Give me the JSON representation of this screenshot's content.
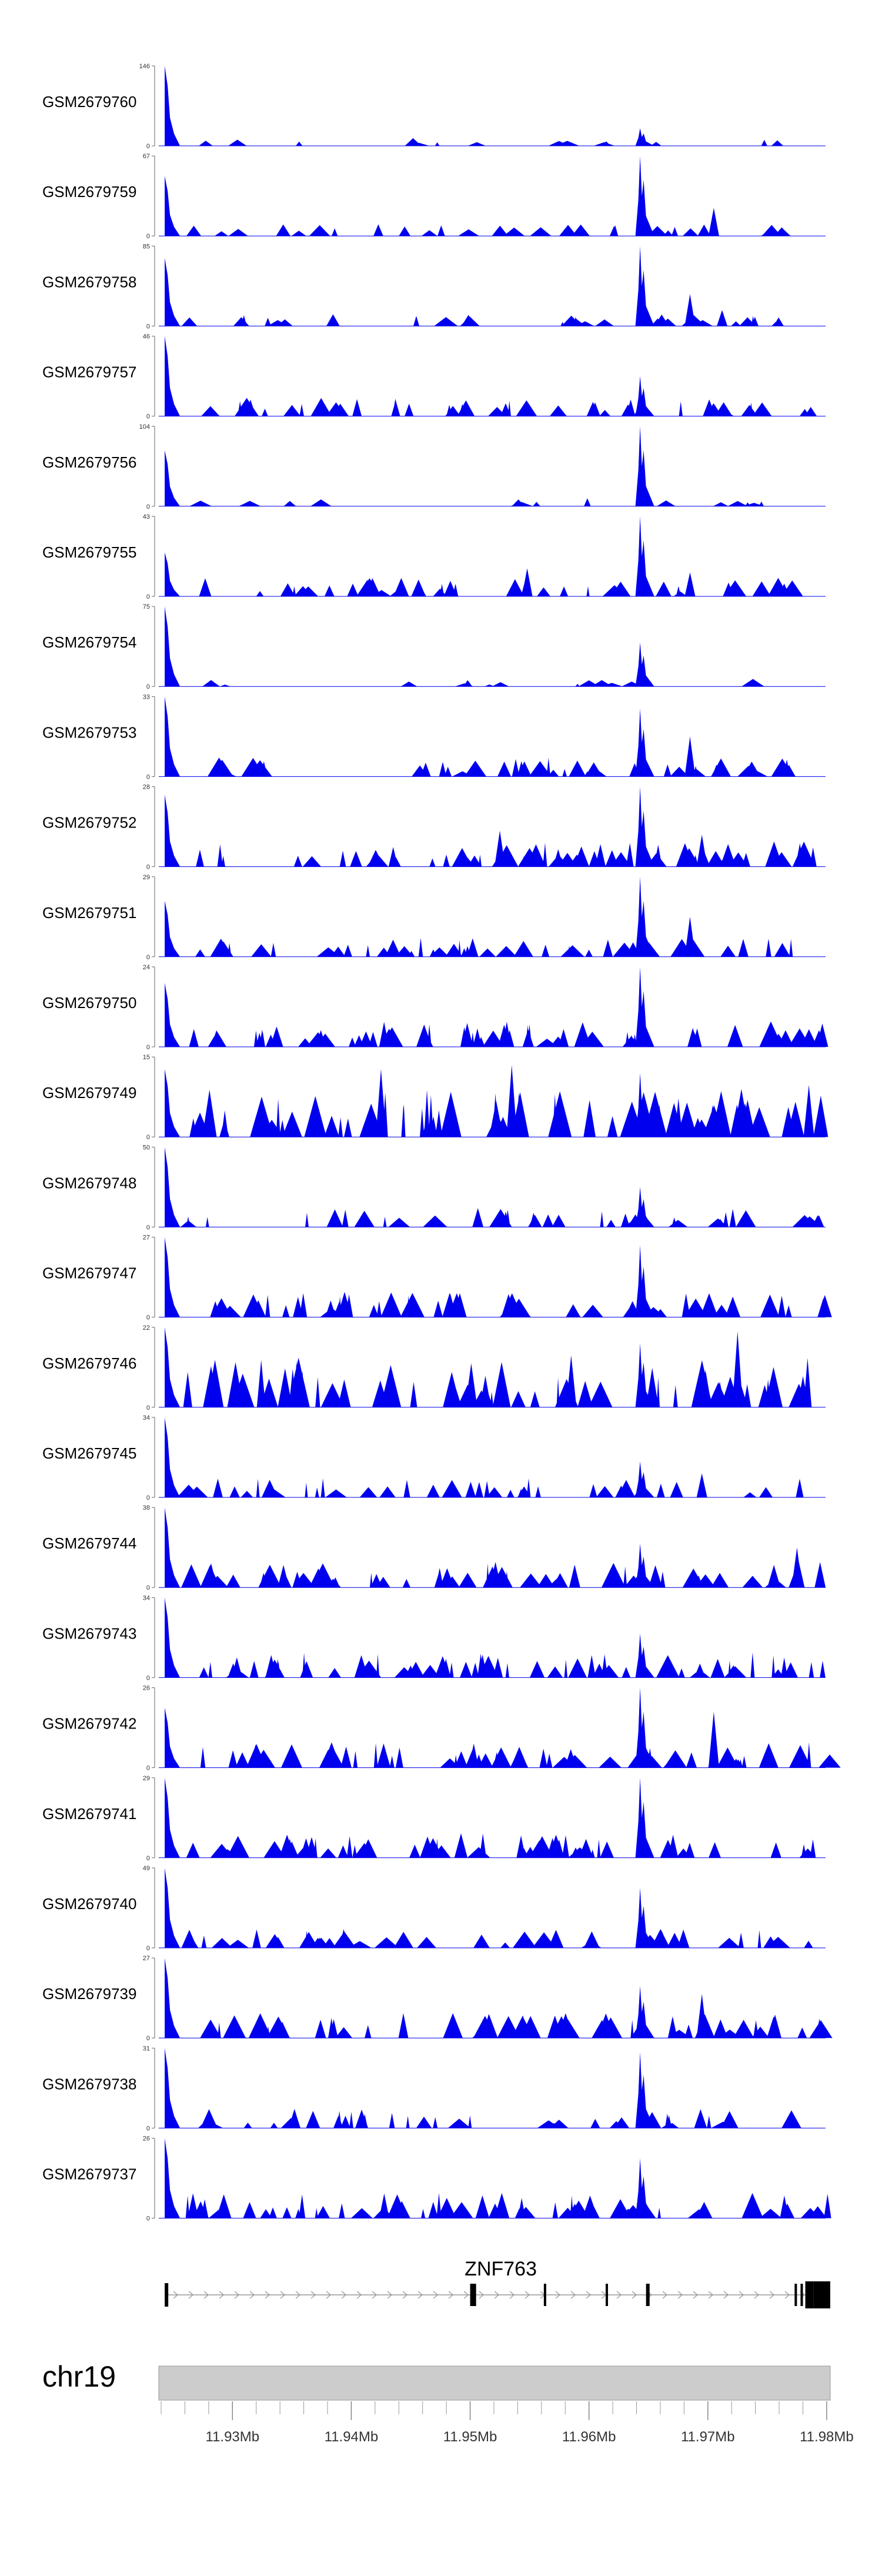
{
  "chart_data": {
    "type": "area",
    "title": "",
    "chromosome": "chr19",
    "genome_range_mb": [
      11.9238,
      11.9803
    ],
    "x_ticks": [
      {
        "value": 11.93,
        "label": "11.93Mb"
      },
      {
        "value": 11.94,
        "label": "11.94Mb"
      },
      {
        "value": 11.95,
        "label": "11.95Mb"
      },
      {
        "value": 11.96,
        "label": "11.96Mb"
      },
      {
        "value": 11.97,
        "label": "11.97Mb"
      },
      {
        "value": 11.98,
        "label": "11.98Mb"
      }
    ],
    "minor_tick_step_mb": 0.002,
    "fill_color": "#0000ee",
    "series": [
      {
        "name": "GSM2679760",
        "ymax": 146,
        "ymax_label": "146",
        "ymin_label": "0",
        "style": "sparse-low",
        "lead_peak": 1.0,
        "main_peak": 0.22,
        "secondary": [],
        "coverage_end": 0.95
      },
      {
        "name": "GSM2679759",
        "ymax": 67,
        "ymax_label": "67",
        "ymin_label": "0",
        "style": "sparse",
        "lead_peak": 0.75,
        "main_peak": 1.0,
        "secondary": [
          [
            11.9705,
            0.35
          ]
        ],
        "coverage_end": 0.96
      },
      {
        "name": "GSM2679758",
        "ymax": 85,
        "ymax_label": "85",
        "ymin_label": "0",
        "style": "sparse",
        "lead_peak": 0.85,
        "main_peak": 1.0,
        "secondary": [
          [
            11.9685,
            0.4
          ],
          [
            11.9712,
            0.2
          ]
        ],
        "coverage_end": 0.97
      },
      {
        "name": "GSM2679757",
        "ymax": 46,
        "ymax_label": "46",
        "ymin_label": "0",
        "style": "medium",
        "lead_peak": 1.0,
        "main_peak": 0.5,
        "secondary": [],
        "coverage_end": 1.0
      },
      {
        "name": "GSM2679756",
        "ymax": 104,
        "ymax_label": "104",
        "ymin_label": "0",
        "style": "sparse-low",
        "lead_peak": 0.7,
        "main_peak": 1.0,
        "secondary": [],
        "coverage_end": 0.97
      },
      {
        "name": "GSM2679755",
        "ymax": 43,
        "ymax_label": "43",
        "ymin_label": "0",
        "style": "medium",
        "lead_peak": 0.55,
        "main_peak": 1.0,
        "secondary": [
          [
            11.9548,
            0.35
          ],
          [
            11.9685,
            0.3
          ]
        ],
        "coverage_end": 0.96
      },
      {
        "name": "GSM2679754",
        "ymax": 75,
        "ymax_label": "75",
        "ymin_label": "0",
        "style": "sparse-low",
        "lead_peak": 1.0,
        "main_peak": 0.55,
        "secondary": [],
        "coverage_end": 0.98
      },
      {
        "name": "GSM2679753",
        "ymax": 33,
        "ymax_label": "33",
        "ymin_label": "0",
        "style": "medium",
        "lead_peak": 1.0,
        "main_peak": 0.85,
        "secondary": [
          [
            11.9685,
            0.5
          ]
        ],
        "coverage_end": 0.96
      },
      {
        "name": "GSM2679752",
        "ymax": 28,
        "ymax_label": "28",
        "ymin_label": "0",
        "style": "dense",
        "lead_peak": 0.9,
        "main_peak": 1.0,
        "secondary": [
          [
            11.9525,
            0.45
          ],
          [
            11.9695,
            0.4
          ]
        ],
        "coverage_end": 0.98
      },
      {
        "name": "GSM2679751",
        "ymax": 29,
        "ymax_label": "29",
        "ymin_label": "0",
        "style": "medium",
        "lead_peak": 0.7,
        "main_peak": 1.0,
        "secondary": [
          [
            11.9685,
            0.5
          ]
        ],
        "coverage_end": 0.96
      },
      {
        "name": "GSM2679750",
        "ymax": 24,
        "ymax_label": "24",
        "ymin_label": "0",
        "style": "dense",
        "lead_peak": 0.8,
        "main_peak": 1.0,
        "secondary": [],
        "coverage_end": 1.0
      },
      {
        "name": "GSM2679749",
        "ymax": 15,
        "ymax_label": "15",
        "ymin_label": "0",
        "style": "very-dense",
        "lead_peak": 0.85,
        "main_peak": 0.8,
        "secondary": [
          [
            11.9425,
            0.85
          ],
          [
            11.9535,
            0.9
          ],
          [
            11.9785,
            0.65
          ]
        ],
        "coverage_end": 0.99
      },
      {
        "name": "GSM2679748",
        "ymax": 50,
        "ymax_label": "50",
        "ymin_label": "0",
        "style": "medium",
        "lead_peak": 1.0,
        "main_peak": 0.5,
        "secondary": [],
        "coverage_end": 1.0
      },
      {
        "name": "GSM2679747",
        "ymax": 27,
        "ymax_label": "27",
        "ymin_label": "0",
        "style": "dense",
        "lead_peak": 1.0,
        "main_peak": 0.9,
        "secondary": [],
        "coverage_end": 1.0
      },
      {
        "name": "GSM2679746",
        "ymax": 22,
        "ymax_label": "22",
        "ymin_label": "0",
        "style": "very-dense",
        "lead_peak": 1.0,
        "main_peak": 0.8,
        "secondary": [
          [
            11.9585,
            0.65
          ],
          [
            11.9725,
            0.95
          ]
        ],
        "coverage_end": 1.0
      },
      {
        "name": "GSM2679745",
        "ymax": 34,
        "ymax_label": "34",
        "ymin_label": "0",
        "style": "medium",
        "lead_peak": 1.0,
        "main_peak": 0.45,
        "secondary": [
          [
            11.9695,
            0.3
          ]
        ],
        "coverage_end": 0.96
      },
      {
        "name": "GSM2679744",
        "ymax": 38,
        "ymax_label": "38",
        "ymin_label": "0",
        "style": "dense",
        "lead_peak": 1.0,
        "main_peak": 0.55,
        "secondary": [
          [
            11.9775,
            0.5
          ]
        ],
        "coverage_end": 1.0
      },
      {
        "name": "GSM2679743",
        "ymax": 34,
        "ymax_label": "34",
        "ymin_label": "0",
        "style": "dense",
        "lead_peak": 1.0,
        "main_peak": 0.55,
        "secondary": [],
        "coverage_end": 1.0
      },
      {
        "name": "GSM2679742",
        "ymax": 26,
        "ymax_label": "26",
        "ymin_label": "0",
        "style": "dense",
        "lead_peak": 0.75,
        "main_peak": 1.0,
        "secondary": [
          [
            11.9705,
            0.7
          ]
        ],
        "coverage_end": 1.0
      },
      {
        "name": "GSM2679741",
        "ymax": 29,
        "ymax_label": "29",
        "ymin_label": "0",
        "style": "dense",
        "lead_peak": 1.0,
        "main_peak": 1.0,
        "secondary": [],
        "coverage_end": 0.98
      },
      {
        "name": "GSM2679740",
        "ymax": 49,
        "ymax_label": "49",
        "ymin_label": "0",
        "style": "medium",
        "lead_peak": 1.0,
        "main_peak": 0.75,
        "secondary": [],
        "coverage_end": 1.0
      },
      {
        "name": "GSM2679739",
        "ymax": 27,
        "ymax_label": "27",
        "ymin_label": "0",
        "style": "dense",
        "lead_peak": 1.0,
        "main_peak": 0.65,
        "secondary": [
          [
            11.9695,
            0.55
          ]
        ],
        "coverage_end": 1.0
      },
      {
        "name": "GSM2679738",
        "ymax": 31,
        "ymax_label": "31",
        "ymin_label": "0",
        "style": "medium",
        "lead_peak": 1.0,
        "main_peak": 0.95,
        "secondary": [],
        "coverage_end": 0.95
      },
      {
        "name": "GSM2679737",
        "ymax": 26,
        "ymax_label": "26",
        "ymin_label": "0",
        "style": "dense",
        "lead_peak": 1.0,
        "main_peak": 0.75,
        "secondary": [],
        "coverage_end": 1.0
      }
    ],
    "main_peak_mb": 11.9644,
    "lead_peak_mb": 11.9243,
    "gene": {
      "name": "ZNF763",
      "strand": "+",
      "start_mb": 11.9243,
      "end_mb": 11.9803,
      "exons": [
        [
          11.9243,
          11.9246
        ],
        [
          11.95,
          11.9505
        ],
        [
          11.9562,
          11.9564
        ],
        [
          11.9614,
          11.9616
        ],
        [
          11.9648,
          11.9651
        ],
        [
          11.9773,
          11.9775
        ],
        [
          11.9778,
          11.978
        ],
        [
          11.9782,
          11.9789
        ],
        [
          11.9789,
          11.9803
        ]
      ],
      "thick_from_exon": 7
    }
  }
}
